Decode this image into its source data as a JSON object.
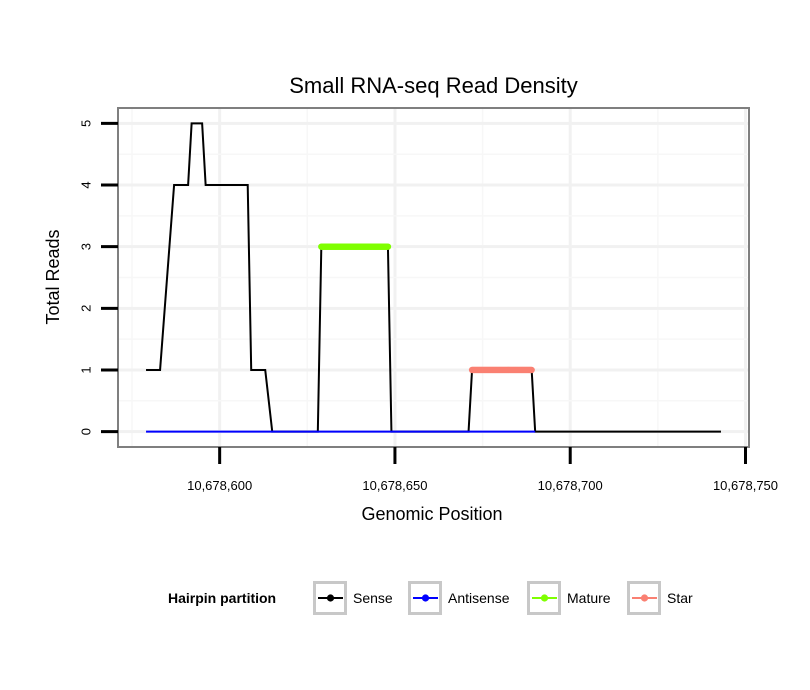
{
  "chart_data": {
    "type": "line",
    "title": "Small RNA-seq Read Density",
    "xlabel": "Genomic Position",
    "ylabel": "Total Reads",
    "xlim": [
      10678571,
      10678751
    ],
    "ylim": [
      -0.25,
      5.25
    ],
    "x_ticks": [
      10678600,
      10678650,
      10678700,
      10678750
    ],
    "x_tick_labels": [
      "10,678,600",
      "10,678,650",
      "10,678,700",
      "10,678,750"
    ],
    "y_ticks": [
      0,
      1,
      2,
      3,
      4,
      5
    ],
    "y_tick_labels": [
      "0",
      "1",
      "2",
      "3",
      "4",
      "5"
    ],
    "grid": true,
    "legend": {
      "title": "Hairpin partition",
      "position": "bottom",
      "entries": [
        "Sense",
        "Antisense",
        "Mature",
        "Star"
      ]
    },
    "series": [
      {
        "name": "Sense",
        "color": "#000000",
        "style": "line",
        "points": [
          [
            10678579,
            1
          ],
          [
            10678583,
            1
          ],
          [
            10678587,
            4
          ],
          [
            10678591,
            4
          ],
          [
            10678592,
            5
          ],
          [
            10678595,
            5
          ],
          [
            10678596,
            4
          ],
          [
            10678608,
            4
          ],
          [
            10678609,
            1
          ],
          [
            10678613,
            1
          ],
          [
            10678615,
            0
          ],
          [
            10678628,
            0
          ],
          [
            10678629,
            3
          ],
          [
            10678648,
            3
          ],
          [
            10678649,
            0
          ],
          [
            10678671,
            0
          ],
          [
            10678672,
            1
          ],
          [
            10678689,
            1
          ],
          [
            10678690,
            0
          ],
          [
            10678743,
            0
          ]
        ]
      },
      {
        "name": "Antisense",
        "color": "#0000ff",
        "style": "line",
        "points": [
          [
            10678579,
            0
          ],
          [
            10678690,
            0
          ]
        ]
      },
      {
        "name": "Mature",
        "color": "#7fff00",
        "style": "points",
        "y": 3,
        "x_range": [
          10678629,
          10678648
        ]
      },
      {
        "name": "Star",
        "color": "#fa8072",
        "style": "points",
        "y": 1,
        "x_range": [
          10678672,
          10678689
        ]
      }
    ]
  }
}
